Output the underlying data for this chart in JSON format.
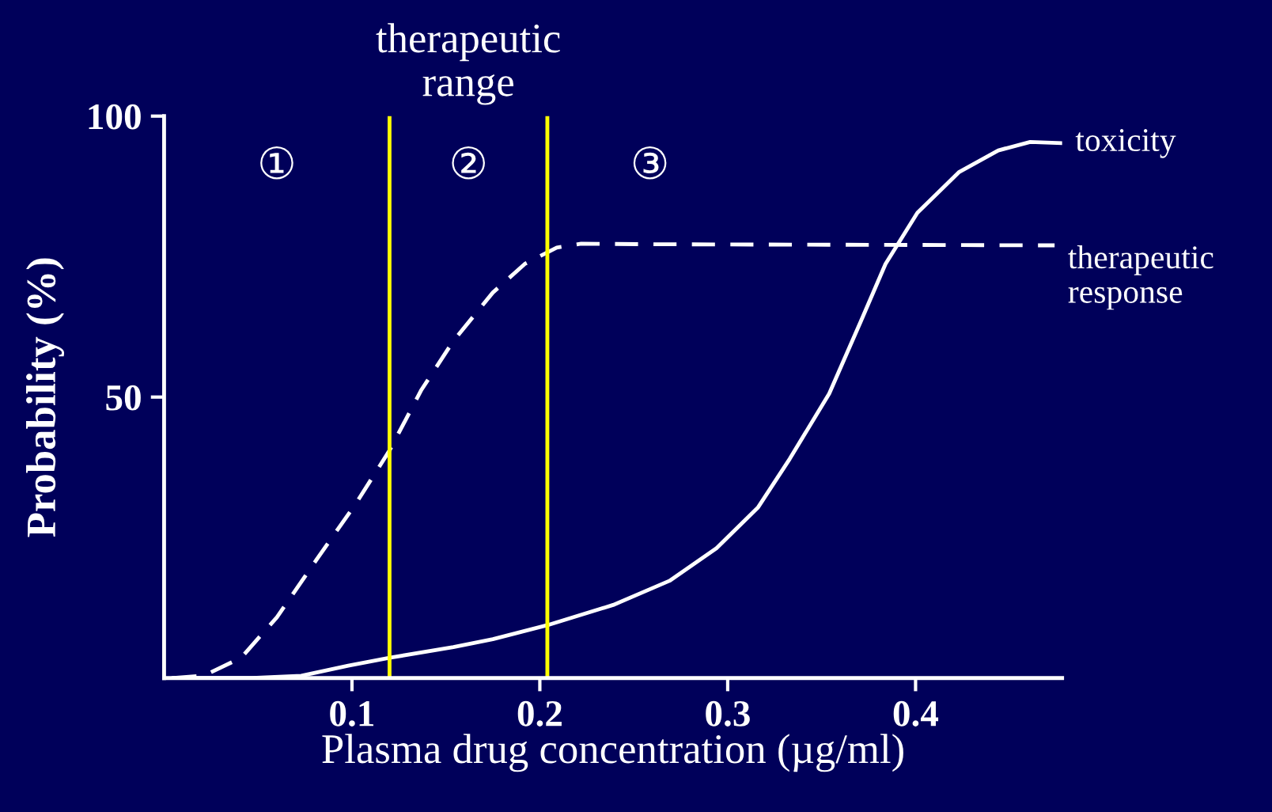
{
  "chart_data": {
    "type": "line",
    "title": "therapeutic range",
    "xlabel": "Plasma drug concentration (µg/ml)",
    "ylabel": "Probability (%)",
    "xlim": [
      0,
      0.478
    ],
    "ylim": [
      0,
      100
    ],
    "xticks": [
      0.1,
      0.2,
      0.3,
      0.4
    ],
    "yticks": [
      50,
      100
    ],
    "grid": false,
    "legend": false,
    "ref_lines": [
      {
        "axis": "x",
        "value": 0.12,
        "color": "#ffff00"
      },
      {
        "axis": "x",
        "value": 0.204,
        "color": "#ffff00"
      }
    ],
    "annotations": [
      "①",
      "②",
      "③"
    ],
    "series": [
      {
        "name": "toxicity",
        "color": "#ffffff",
        "line_style": "solid",
        "x": [
          0.005,
          0.047,
          0.073,
          0.098,
          0.12,
          0.154,
          0.175,
          0.204,
          0.239,
          0.269,
          0.294,
          0.316,
          0.333,
          0.354,
          0.371,
          0.384,
          0.401,
          0.423,
          0.444,
          0.461,
          0.478
        ],
        "values": [
          0,
          0,
          0.4,
          2.2,
          3.6,
          5.5,
          6.9,
          9.4,
          13,
          17.3,
          23.1,
          30.3,
          39,
          50.6,
          63.6,
          73.7,
          82.8,
          90,
          93.9,
          95.4,
          95.2
        ]
      },
      {
        "name": "therapeutic response",
        "color": "#ffffff",
        "line_style": "dashed",
        "x": [
          0.005,
          0.021,
          0.041,
          0.06,
          0.081,
          0.102,
          0.12,
          0.137,
          0.154,
          0.175,
          0.192,
          0.209,
          0.222,
          0.26,
          0.474
        ],
        "values": [
          0,
          0.4,
          3.6,
          10.8,
          21,
          31,
          40.5,
          51.3,
          60,
          68.6,
          73.7,
          76.6,
          77.3,
          77.2,
          77
        ]
      }
    ]
  }
}
